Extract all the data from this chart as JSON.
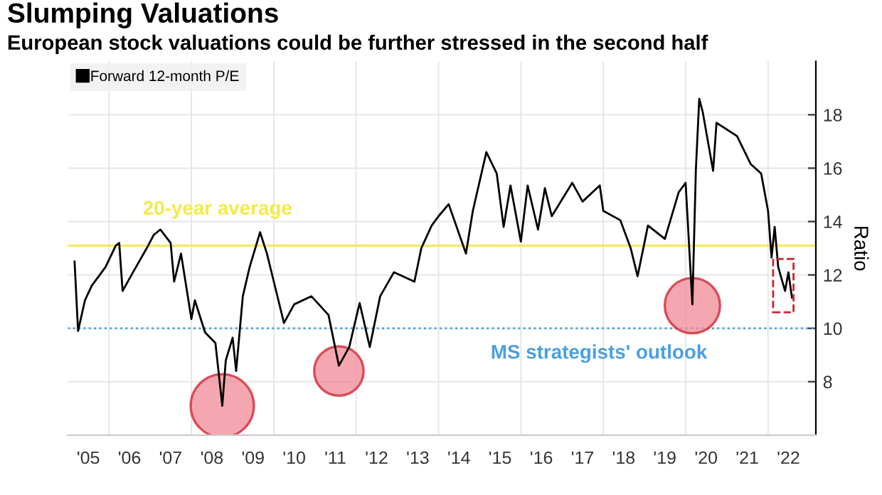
{
  "chart_data": {
    "type": "line",
    "title": "Slumping Valuations",
    "subtitle": "European stock valuations could be further stressed in the second half",
    "ylabel": "Ratio",
    "x": [
      "2005-03",
      "2005-04",
      "2005-06",
      "2005-08",
      "2005-12",
      "2006-03",
      "2006-04",
      "2006-05",
      "2006-08",
      "2006-12",
      "2007-02",
      "2007-04",
      "2007-07",
      "2007-08",
      "2007-10",
      "2008-01",
      "2008-02",
      "2008-05",
      "2008-08",
      "2008-10",
      "2008-11",
      "2009-01",
      "2009-02",
      "2009-04",
      "2009-06",
      "2009-09",
      "2009-11",
      "2010-01",
      "2010-04",
      "2010-07",
      "2010-12",
      "2011-05",
      "2011-08",
      "2011-11",
      "2012-02",
      "2012-05",
      "2012-08",
      "2012-12",
      "2013-06",
      "2013-08",
      "2013-11",
      "2014-01",
      "2014-04",
      "2014-09",
      "2014-11",
      "2015-03",
      "2015-06",
      "2015-08",
      "2015-10",
      "2016-01",
      "2016-03",
      "2016-06",
      "2016-08",
      "2016-10",
      "2017-04",
      "2017-07",
      "2017-12",
      "2018-01",
      "2018-06",
      "2018-09",
      "2018-11",
      "2019-02",
      "2019-07",
      "2019-11",
      "2020-01",
      "2020-03",
      "2020-04",
      "2020-05",
      "2020-06",
      "2020-09",
      "2020-10",
      "2021-04",
      "2021-08",
      "2021-11",
      "2022-01",
      "2022-02",
      "2022-03",
      "2022-04",
      "2022-06",
      "2022-07",
      "2022-08"
    ],
    "series": [
      {
        "name": "Forward 12-month P/E",
        "color": "#000000",
        "values": [
          12.5,
          9.9,
          11.05,
          11.6,
          12.3,
          13.1,
          13.2,
          11.4,
          12.1,
          13.0,
          13.5,
          13.7,
          13.2,
          11.75,
          12.8,
          10.35,
          11.05,
          9.85,
          9.45,
          7.1,
          8.8,
          9.65,
          8.4,
          11.2,
          12.3,
          13.6,
          12.8,
          11.75,
          10.2,
          10.9,
          11.2,
          10.5,
          8.6,
          9.3,
          10.95,
          9.3,
          11.2,
          12.1,
          11.75,
          13.0,
          13.85,
          14.2,
          14.65,
          12.8,
          14.4,
          16.6,
          15.8,
          13.8,
          15.35,
          13.25,
          15.35,
          13.7,
          15.25,
          14.2,
          15.45,
          14.75,
          15.35,
          14.4,
          14.05,
          13.0,
          11.95,
          13.85,
          13.35,
          15.1,
          15.45,
          10.9,
          15.95,
          18.6,
          18.1,
          15.9,
          17.7,
          17.2,
          16.15,
          15.8,
          14.4,
          12.65,
          13.8,
          12.3,
          11.4,
          12.1,
          11.15
        ]
      }
    ],
    "xlim": [
      "2005-01",
      "2023-03"
    ],
    "xticks": [
      {
        "value": "2005-07",
        "label": "'05"
      },
      {
        "value": "2006-01",
        "label": null
      },
      {
        "value": "2006-07",
        "label": "'06"
      },
      {
        "value": "2007-07",
        "label": "'07"
      },
      {
        "value": "2008-01",
        "label": null
      },
      {
        "value": "2008-07",
        "label": "'08"
      },
      {
        "value": "2009-07",
        "label": "'09"
      },
      {
        "value": "2010-01",
        "label": null
      },
      {
        "value": "2010-07",
        "label": "'10"
      },
      {
        "value": "2011-07",
        "label": "'11"
      },
      {
        "value": "2012-01",
        "label": null
      },
      {
        "value": "2012-07",
        "label": "'12"
      },
      {
        "value": "2013-07",
        "label": "'13"
      },
      {
        "value": "2014-01",
        "label": null
      },
      {
        "value": "2014-07",
        "label": "'14"
      },
      {
        "value": "2015-07",
        "label": "'15"
      },
      {
        "value": "2016-01",
        "label": null
      },
      {
        "value": "2016-07",
        "label": "'16"
      },
      {
        "value": "2017-07",
        "label": "'17"
      },
      {
        "value": "2018-01",
        "label": null
      },
      {
        "value": "2018-07",
        "label": "'18"
      },
      {
        "value": "2019-07",
        "label": "'19"
      },
      {
        "value": "2020-01",
        "label": null
      },
      {
        "value": "2020-07",
        "label": "'20"
      },
      {
        "value": "2021-07",
        "label": "'21"
      },
      {
        "value": "2022-01",
        "label": null
      },
      {
        "value": "2022-07",
        "label": "'22"
      }
    ],
    "ylim": [
      6,
      20
    ],
    "yticks": [
      8,
      10,
      12,
      14,
      16,
      18
    ],
    "ref_lines": [
      {
        "axis": "y",
        "value": 13.1,
        "label": "20-year average",
        "color": "#f5e94a",
        "line_style": "solid"
      },
      {
        "axis": "y",
        "value": 10,
        "label": "MS strategists' outlook",
        "color": "#4a9fe0",
        "line_style": "dotted"
      }
    ],
    "grid": true,
    "legend": "top left",
    "line_style": "solid",
    "marker": "none"
  }
}
